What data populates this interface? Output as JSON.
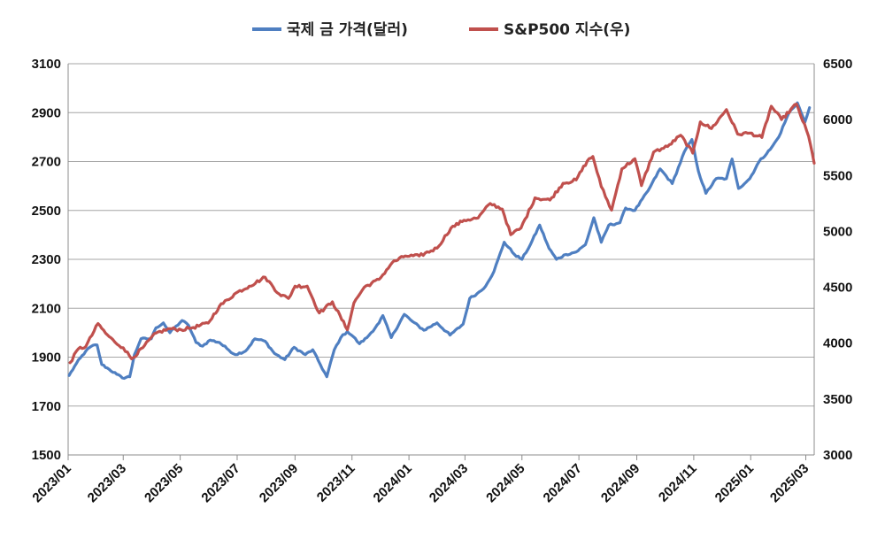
{
  "chart_data": {
    "type": "line",
    "title": "",
    "xlabel": "",
    "ylabel": "",
    "x_ticks": [
      "2023/01",
      "2023/03",
      "2023/05",
      "2023/07",
      "2023/09",
      "2023/11",
      "2024/01",
      "2024/03",
      "2024/05",
      "2024/07",
      "2024/09",
      "2024/11",
      "2025/01",
      "2025/03"
    ],
    "y_left": {
      "ylim": [
        1500,
        3100
      ],
      "ticks": [
        "1500",
        "1700",
        "1900",
        "2100",
        "2300",
        "2500",
        "2700",
        "2900",
        "3100"
      ]
    },
    "y_right": {
      "ylim": [
        3000,
        6500
      ],
      "ticks": [
        "3000",
        "3500",
        "4000",
        "4500",
        "5000",
        "5500",
        "6000",
        "6500"
      ]
    },
    "grid": true,
    "legend": "top",
    "series": [
      {
        "name": "국제 금 가격(달러)",
        "axis": "left",
        "color": "#4f7fc1",
        "points": [
          [
            "2023-01-02",
            1825
          ],
          [
            "2023-01-10",
            1875
          ],
          [
            "2023-01-20",
            1925
          ],
          [
            "2023-01-26",
            1945
          ],
          [
            "2023-02-01",
            1950
          ],
          [
            "2023-02-06",
            1870
          ],
          [
            "2023-02-14",
            1850
          ],
          [
            "2023-02-22",
            1830
          ],
          [
            "2023-02-28",
            1815
          ],
          [
            "2023-03-08",
            1820
          ],
          [
            "2023-03-13",
            1910
          ],
          [
            "2023-03-20",
            1975
          ],
          [
            "2023-03-31",
            1975
          ],
          [
            "2023-04-05",
            2020
          ],
          [
            "2023-04-13",
            2040
          ],
          [
            "2023-04-20",
            2000
          ],
          [
            "2023-05-03",
            2050
          ],
          [
            "2023-05-10",
            2030
          ],
          [
            "2023-05-18",
            1960
          ],
          [
            "2023-05-25",
            1945
          ],
          [
            "2023-06-02",
            1970
          ],
          [
            "2023-06-12",
            1960
          ],
          [
            "2023-06-20",
            1935
          ],
          [
            "2023-06-29",
            1910
          ],
          [
            "2023-07-10",
            1925
          ],
          [
            "2023-07-20",
            1975
          ],
          [
            "2023-07-31",
            1965
          ],
          [
            "2023-08-10",
            1915
          ],
          [
            "2023-08-21",
            1890
          ],
          [
            "2023-08-31",
            1940
          ],
          [
            "2023-09-12",
            1910
          ],
          [
            "2023-09-20",
            1930
          ],
          [
            "2023-09-28",
            1870
          ],
          [
            "2023-10-05",
            1820
          ],
          [
            "2023-10-13",
            1930
          ],
          [
            "2023-10-20",
            1980
          ],
          [
            "2023-10-27",
            2005
          ],
          [
            "2023-11-02",
            1985
          ],
          [
            "2023-11-09",
            1955
          ],
          [
            "2023-11-17",
            1980
          ],
          [
            "2023-11-30",
            2040
          ],
          [
            "2023-12-04",
            2070
          ],
          [
            "2023-12-13",
            1980
          ],
          [
            "2023-12-27",
            2075
          ],
          [
            "2024-01-05",
            2045
          ],
          [
            "2024-01-17",
            2010
          ],
          [
            "2024-01-31",
            2040
          ],
          [
            "2024-02-14",
            1990
          ],
          [
            "2024-02-28",
            2035
          ],
          [
            "2024-03-06",
            2140
          ],
          [
            "2024-03-14",
            2160
          ],
          [
            "2024-03-21",
            2180
          ],
          [
            "2024-04-01",
            2250
          ],
          [
            "2024-04-12",
            2370
          ],
          [
            "2024-04-23",
            2320
          ],
          [
            "2024-05-01",
            2300
          ],
          [
            "2024-05-10",
            2360
          ],
          [
            "2024-05-20",
            2440
          ],
          [
            "2024-05-30",
            2345
          ],
          [
            "2024-06-07",
            2300
          ],
          [
            "2024-06-17",
            2320
          ],
          [
            "2024-06-28",
            2330
          ],
          [
            "2024-07-08",
            2360
          ],
          [
            "2024-07-17",
            2470
          ],
          [
            "2024-07-25",
            2370
          ],
          [
            "2024-08-02",
            2440
          ],
          [
            "2024-08-14",
            2450
          ],
          [
            "2024-08-20",
            2510
          ],
          [
            "2024-08-30",
            2500
          ],
          [
            "2024-09-13",
            2580
          ],
          [
            "2024-09-26",
            2670
          ],
          [
            "2024-10-09",
            2610
          ],
          [
            "2024-10-22",
            2740
          ],
          [
            "2024-10-30",
            2790
          ],
          [
            "2024-11-06",
            2660
          ],
          [
            "2024-11-14",
            2570
          ],
          [
            "2024-11-25",
            2630
          ],
          [
            "2024-12-06",
            2630
          ],
          [
            "2024-12-12",
            2710
          ],
          [
            "2024-12-19",
            2590
          ],
          [
            "2024-12-31",
            2630
          ],
          [
            "2025-01-10",
            2700
          ],
          [
            "2025-01-22",
            2750
          ],
          [
            "2025-01-31",
            2800
          ],
          [
            "2025-02-11",
            2900
          ],
          [
            "2025-02-20",
            2940
          ],
          [
            "2025-02-28",
            2860
          ],
          [
            "2025-03-05",
            2920
          ]
        ]
      },
      {
        "name": "S&P500 지수(우)",
        "axis": "right",
        "color": "#c0504d",
        "points": [
          [
            "2023-01-03",
            3825
          ],
          [
            "2023-01-12",
            3950
          ],
          [
            "2023-01-20",
            3970
          ],
          [
            "2023-02-02",
            4175
          ],
          [
            "2023-02-10",
            4090
          ],
          [
            "2023-02-20",
            4010
          ],
          [
            "2023-03-01",
            3960
          ],
          [
            "2023-03-10",
            3860
          ],
          [
            "2023-03-22",
            3960
          ],
          [
            "2023-04-05",
            4090
          ],
          [
            "2023-04-20",
            4130
          ],
          [
            "2023-05-02",
            4120
          ],
          [
            "2023-05-15",
            4140
          ],
          [
            "2023-05-31",
            4180
          ],
          [
            "2023-06-12",
            4330
          ],
          [
            "2023-06-30",
            4450
          ],
          [
            "2023-07-14",
            4510
          ],
          [
            "2023-07-31",
            4590
          ],
          [
            "2023-08-15",
            4440
          ],
          [
            "2023-08-25",
            4400
          ],
          [
            "2023-09-01",
            4510
          ],
          [
            "2023-09-14",
            4510
          ],
          [
            "2023-09-27",
            4270
          ],
          [
            "2023-10-11",
            4370
          ],
          [
            "2023-10-27",
            4120
          ],
          [
            "2023-11-03",
            4360
          ],
          [
            "2023-11-14",
            4500
          ],
          [
            "2023-11-30",
            4570
          ],
          [
            "2023-12-14",
            4720
          ],
          [
            "2023-12-28",
            4780
          ],
          [
            "2024-01-12",
            4780
          ],
          [
            "2024-01-31",
            4850
          ],
          [
            "2024-02-15",
            5030
          ],
          [
            "2024-02-29",
            5100
          ],
          [
            "2024-03-15",
            5120
          ],
          [
            "2024-03-28",
            5250
          ],
          [
            "2024-04-10",
            5200
          ],
          [
            "2024-04-19",
            4970
          ],
          [
            "2024-04-30",
            5030
          ],
          [
            "2024-05-15",
            5300
          ],
          [
            "2024-05-31",
            5280
          ],
          [
            "2024-06-14",
            5430
          ],
          [
            "2024-06-28",
            5460
          ],
          [
            "2024-07-10",
            5630
          ],
          [
            "2024-07-16",
            5670
          ],
          [
            "2024-07-25",
            5400
          ],
          [
            "2024-08-05",
            5190
          ],
          [
            "2024-08-16",
            5560
          ],
          [
            "2024-08-30",
            5650
          ],
          [
            "2024-09-06",
            5410
          ],
          [
            "2024-09-19",
            5710
          ],
          [
            "2024-10-04",
            5760
          ],
          [
            "2024-10-18",
            5860
          ],
          [
            "2024-10-31",
            5700
          ],
          [
            "2024-11-08",
            5980
          ],
          [
            "2024-11-20",
            5920
          ],
          [
            "2024-12-06",
            6090
          ],
          [
            "2024-12-18",
            5870
          ],
          [
            "2024-12-31",
            5880
          ],
          [
            "2025-01-13",
            5840
          ],
          [
            "2025-01-23",
            6120
          ],
          [
            "2025-02-03",
            6000
          ],
          [
            "2025-02-19",
            6140
          ],
          [
            "2025-03-04",
            5850
          ],
          [
            "2025-03-10",
            5610
          ]
        ]
      }
    ]
  }
}
